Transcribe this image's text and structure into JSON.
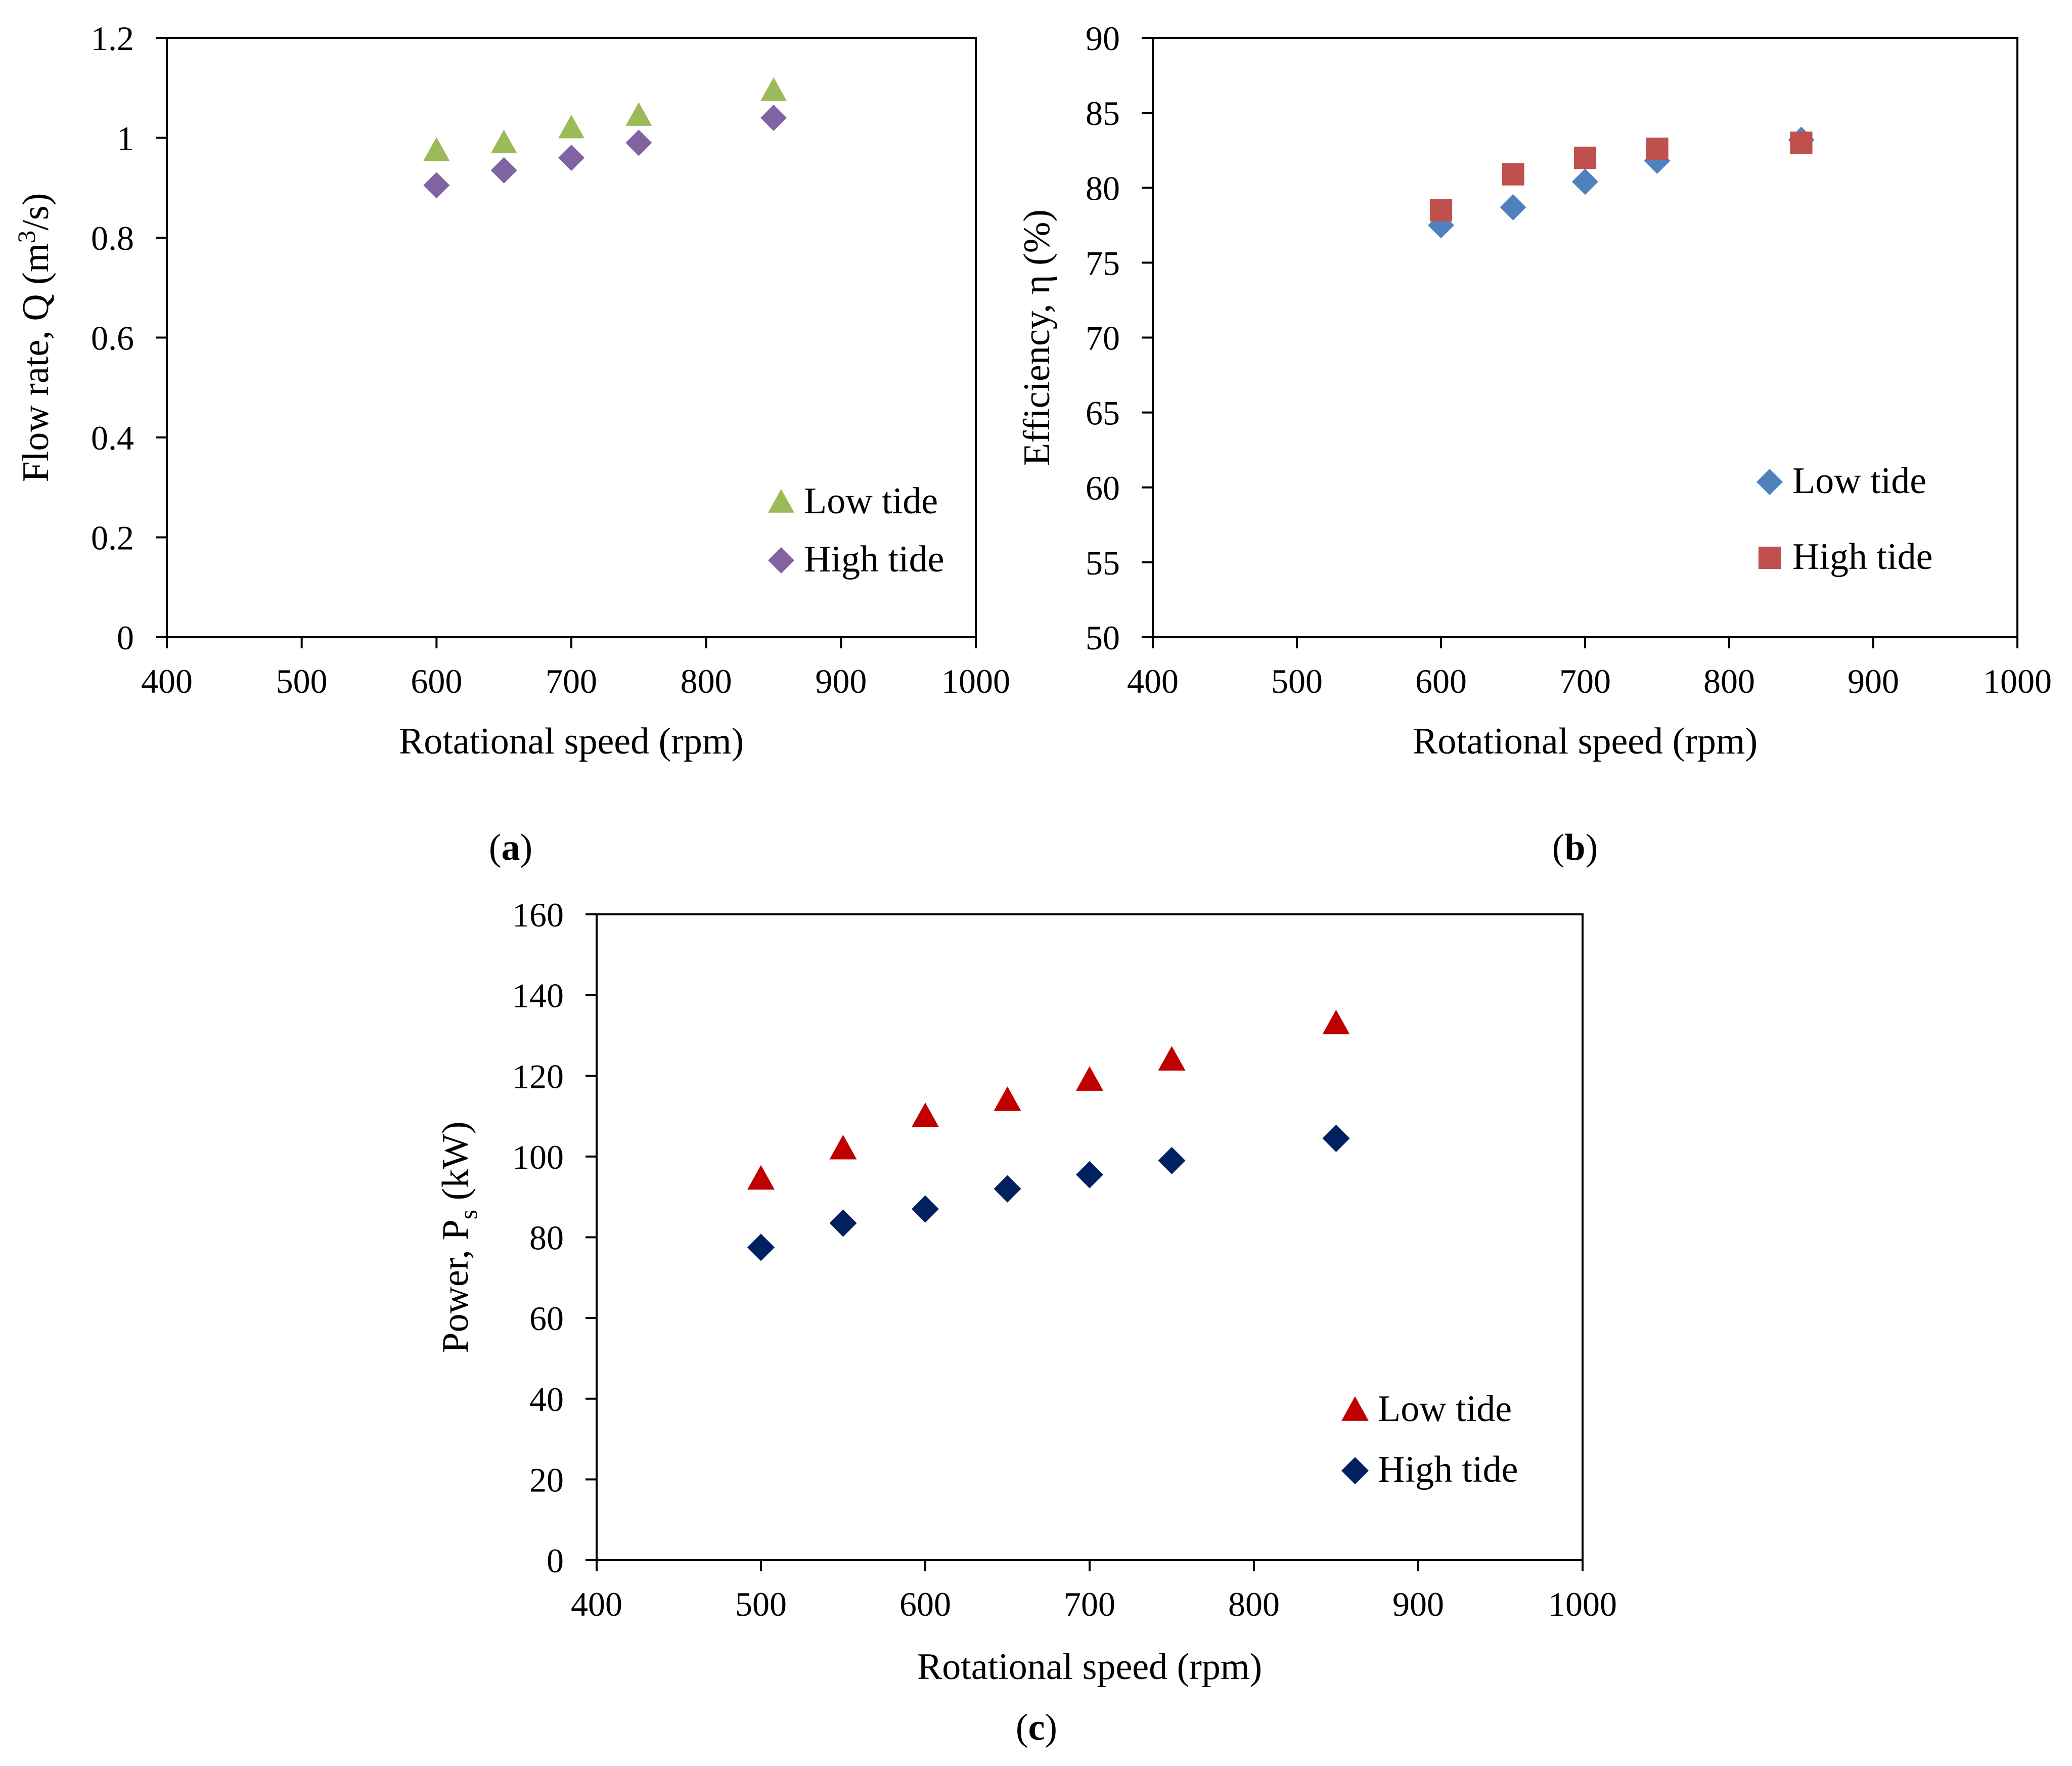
{
  "chart_data": [
    {
      "id": "a",
      "type": "scatter",
      "caption": "a",
      "xlabel": "Rotational speed (rpm)",
      "ylabel": "Flow rate, Q (m³/s)",
      "ylabel_parts": {
        "base": "Flow rate, Q (m",
        "sup": "3",
        "tail": "/s)"
      },
      "xlim": [
        400,
        1000
      ],
      "ylim": [
        0,
        1.2
      ],
      "xticks": [
        "400",
        "500",
        "600",
        "700",
        "800",
        "900",
        "1000"
      ],
      "yticks": [
        "0",
        "0.2",
        "0.4",
        "0.6",
        "0.8",
        "1",
        "1.2"
      ],
      "grid": false,
      "legend_position": "bottom-right",
      "series": [
        {
          "name": "Low tide",
          "marker": "triangle",
          "color": "#9bbb59",
          "x": [
            600,
            650,
            700,
            750,
            850
          ],
          "y": [
            0.975,
            0.99,
            1.02,
            1.045,
            1.095
          ]
        },
        {
          "name": "High tide",
          "marker": "diamond",
          "color": "#8064a2",
          "x": [
            600,
            650,
            700,
            750,
            850
          ],
          "y": [
            0.905,
            0.935,
            0.96,
            0.99,
            1.04
          ]
        }
      ]
    },
    {
      "id": "b",
      "type": "scatter",
      "caption": "b",
      "xlabel": "Rotational speed (rpm)",
      "ylabel": "Efficiency, η (%)",
      "xlim": [
        400,
        1000
      ],
      "ylim": [
        50,
        90
      ],
      "xticks": [
        "400",
        "500",
        "600",
        "700",
        "800",
        "900",
        "1000"
      ],
      "yticks": [
        "50",
        "55",
        "60",
        "65",
        "70",
        "75",
        "80",
        "85",
        "90"
      ],
      "grid": false,
      "legend_position": "bottom-right",
      "series": [
        {
          "name": "Low tide",
          "marker": "diamond",
          "color": "#4f81bd",
          "x": [
            600,
            650,
            700,
            750,
            850
          ],
          "y": [
            77.5,
            78.7,
            80.4,
            81.8,
            83.2
          ]
        },
        {
          "name": "High tide",
          "marker": "square",
          "color": "#c0504d",
          "x": [
            600,
            650,
            700,
            750,
            850
          ],
          "y": [
            78.5,
            80.9,
            82.0,
            82.6,
            83.0
          ]
        }
      ]
    },
    {
      "id": "c",
      "type": "scatter",
      "caption": "c",
      "xlabel": "Rotational speed (rpm)",
      "ylabel": "Power, Ps (kW)",
      "ylabel_parts": {
        "base": "Power, P",
        "sub": "s",
        "tail": " (kW)"
      },
      "xlim": [
        400,
        1000
      ],
      "ylim": [
        0,
        160
      ],
      "xticks": [
        "400",
        "500",
        "600",
        "700",
        "800",
        "900",
        "1000"
      ],
      "yticks": [
        "0",
        "20",
        "40",
        "60",
        "80",
        "100",
        "120",
        "140",
        "160"
      ],
      "grid": false,
      "legend_position": "bottom-right",
      "series": [
        {
          "name": "Low tide",
          "marker": "triangle",
          "color": "#c00000",
          "x": [
            500,
            550,
            600,
            650,
            700,
            750,
            850
          ],
          "y": [
            94.5,
            102,
            110,
            114,
            119,
            124,
            133
          ]
        },
        {
          "name": "High tide",
          "marker": "diamond",
          "color": "#002060",
          "x": [
            500,
            550,
            600,
            650,
            700,
            750,
            850
          ],
          "y": [
            77.5,
            83.5,
            87,
            92,
            95.5,
            99,
            104.5
          ]
        }
      ]
    }
  ]
}
